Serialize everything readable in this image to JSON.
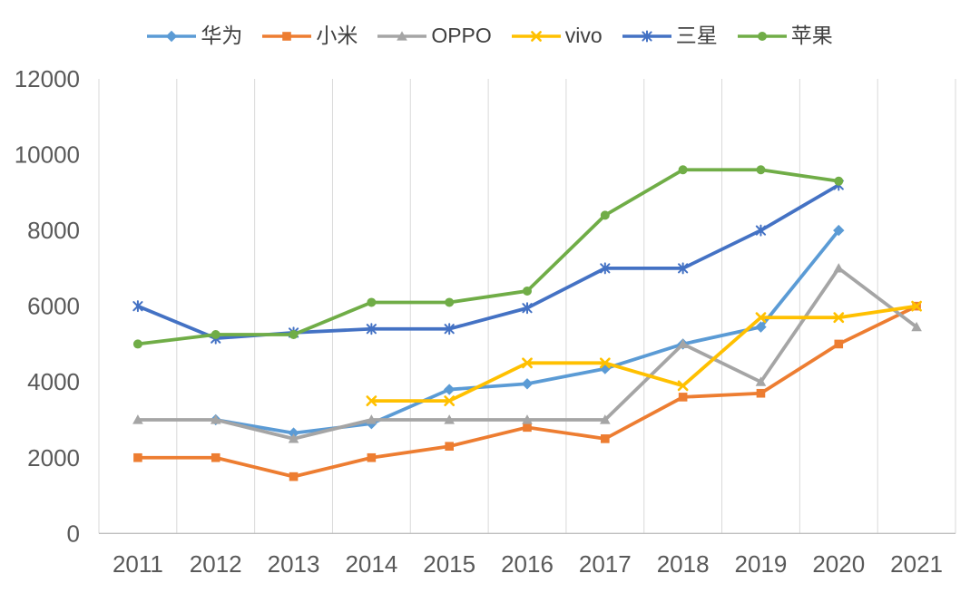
{
  "chart_data": {
    "type": "line",
    "title": "",
    "categories": [
      "2011",
      "2012",
      "2013",
      "2014",
      "2015",
      "2016",
      "2017",
      "2018",
      "2019",
      "2020",
      "2021"
    ],
    "series": [
      {
        "name": "华为",
        "color": "#5B9BD5",
        "marker": "diamond",
        "values": [
          null,
          3000,
          2650,
          2900,
          3800,
          3950,
          4350,
          5000,
          5450,
          8000,
          null
        ]
      },
      {
        "name": "小米",
        "color": "#ED7D31",
        "marker": "square",
        "values": [
          2000,
          2000,
          1500,
          2000,
          2300,
          2800,
          2500,
          3600,
          3700,
          5000,
          6000
        ]
      },
      {
        "name": "OPPO",
        "color": "#A5A5A5",
        "marker": "triangle",
        "values": [
          3000,
          3000,
          2500,
          3000,
          3000,
          3000,
          3000,
          5000,
          4000,
          7000,
          5450
        ]
      },
      {
        "name": "vivo",
        "color": "#FFC000",
        "marker": "x",
        "values": [
          null,
          null,
          null,
          3500,
          3500,
          4500,
          4500,
          3900,
          5700,
          5700,
          6000
        ]
      },
      {
        "name": "三星",
        "color": "#4472C4",
        "marker": "asterisk",
        "values": [
          6000,
          5150,
          5300,
          5400,
          5400,
          5950,
          7000,
          7000,
          8000,
          9200,
          null
        ]
      },
      {
        "name": "苹果",
        "color": "#70AD47",
        "marker": "circle",
        "values": [
          5000,
          5250,
          5250,
          6100,
          6100,
          6400,
          8400,
          9600,
          9600,
          9300,
          null
        ]
      }
    ],
    "ylim": [
      0,
      12000
    ],
    "yticks": [
      "0",
      "2000",
      "4000",
      "6000",
      "8000",
      "10000",
      "12000"
    ],
    "ytick_values": [
      0,
      2000,
      4000,
      6000,
      8000,
      10000,
      12000
    ],
    "xlabel": "",
    "ylabel": "",
    "grid": "vertical-between-categories",
    "legend_position": "top-center",
    "axis_label_color": "#595959",
    "legend_text_color": "#404040",
    "gridline_color": "#D9D9D9",
    "axis_line_color": "#BFBFBF",
    "background_color": "#FFFFFF"
  }
}
